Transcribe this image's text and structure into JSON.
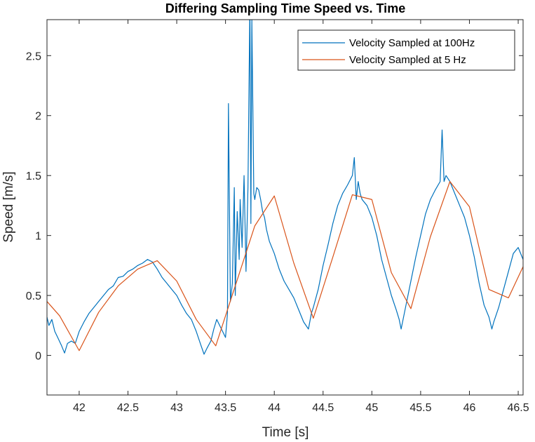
{
  "chart_data": {
    "type": "line",
    "title": "Differing Sampling Time Speed vs. Time",
    "xlabel": "Time [s]",
    "ylabel": "Speed [m/s]",
    "xlim": [
      41.67,
      46.55
    ],
    "ylim": [
      -0.33,
      2.8
    ],
    "grid": false,
    "legend_position": "top-right",
    "x_ticks": [
      42,
      42.5,
      43,
      43.5,
      44,
      44.5,
      45,
      45.5,
      46,
      46.5
    ],
    "x_tick_labels": [
      "42",
      "42.5",
      "43",
      "43.5",
      "44",
      "44.5",
      "45",
      "45.5",
      "46",
      "46.5"
    ],
    "y_ticks": [
      0,
      0.5,
      1,
      1.5,
      2,
      2.5
    ],
    "y_tick_labels": [
      "0",
      "0.5",
      "1",
      "1.5",
      "2",
      "2.5"
    ],
    "series": [
      {
        "name": "Velocity Sampled at 100Hz",
        "color": "#0072BD",
        "x": [
          41.67,
          41.69,
          41.72,
          41.75,
          41.78,
          41.82,
          41.85,
          41.88,
          41.92,
          41.96,
          42.0,
          42.05,
          42.1,
          42.15,
          42.2,
          42.25,
          42.3,
          42.35,
          42.4,
          42.45,
          42.5,
          42.55,
          42.6,
          42.65,
          42.7,
          42.75,
          42.8,
          42.85,
          42.9,
          42.95,
          43.0,
          43.05,
          43.1,
          43.15,
          43.2,
          43.25,
          43.28,
          43.31,
          43.35,
          43.38,
          43.41,
          43.44,
          43.47,
          43.5,
          43.52,
          43.53,
          43.55,
          43.57,
          43.59,
          43.6,
          43.62,
          43.64,
          43.65,
          43.67,
          43.69,
          43.71,
          43.73,
          43.75,
          43.76,
          43.77,
          43.79,
          43.8,
          43.82,
          43.84,
          43.86,
          43.88,
          43.9,
          43.92,
          43.95,
          44.0,
          44.05,
          44.1,
          44.15,
          44.2,
          44.25,
          44.3,
          44.35,
          44.38,
          44.4,
          44.45,
          44.5,
          44.55,
          44.6,
          44.65,
          44.7,
          44.75,
          44.8,
          44.82,
          44.84,
          44.86,
          44.88,
          44.9,
          44.95,
          45.0,
          45.05,
          45.1,
          45.15,
          45.2,
          45.25,
          45.28,
          45.3,
          45.35,
          45.4,
          45.45,
          45.5,
          45.55,
          45.6,
          45.65,
          45.7,
          45.72,
          45.74,
          45.76,
          45.8,
          45.85,
          45.9,
          45.95,
          46.0,
          46.05,
          46.1,
          46.15,
          46.2,
          46.23,
          46.25,
          46.3,
          46.35,
          46.4,
          46.45,
          46.5,
          46.55
        ],
        "values": [
          0.32,
          0.25,
          0.3,
          0.2,
          0.15,
          0.08,
          0.02,
          0.1,
          0.12,
          0.1,
          0.2,
          0.28,
          0.35,
          0.4,
          0.45,
          0.5,
          0.55,
          0.58,
          0.65,
          0.66,
          0.7,
          0.72,
          0.75,
          0.77,
          0.8,
          0.78,
          0.72,
          0.65,
          0.6,
          0.55,
          0.5,
          0.42,
          0.35,
          0.3,
          0.2,
          0.08,
          0.01,
          0.06,
          0.12,
          0.22,
          0.3,
          0.25,
          0.2,
          0.15,
          0.35,
          2.1,
          0.45,
          0.6,
          1.4,
          0.5,
          1.2,
          0.8,
          1.3,
          0.9,
          1.5,
          0.7,
          1.4,
          2.95,
          1.1,
          2.8,
          1.35,
          1.3,
          1.4,
          1.38,
          1.3,
          1.2,
          1.15,
          1.05,
          0.95,
          0.85,
          0.72,
          0.62,
          0.55,
          0.48,
          0.38,
          0.28,
          0.22,
          0.35,
          0.4,
          0.55,
          0.75,
          0.92,
          1.1,
          1.25,
          1.35,
          1.42,
          1.5,
          1.65,
          1.3,
          1.45,
          1.35,
          1.3,
          1.25,
          1.15,
          1.0,
          0.8,
          0.65,
          0.5,
          0.38,
          0.3,
          0.22,
          0.42,
          0.62,
          0.82,
          1.0,
          1.18,
          1.3,
          1.38,
          1.45,
          1.88,
          1.45,
          1.5,
          1.45,
          1.35,
          1.25,
          1.15,
          1.0,
          0.82,
          0.6,
          0.42,
          0.32,
          0.22,
          0.28,
          0.4,
          0.55,
          0.7,
          0.85,
          0.9,
          0.8
        ]
      },
      {
        "name": "Velocity Sampled at 5 Hz",
        "color": "#D95319",
        "x": [
          41.67,
          41.8,
          42.0,
          42.2,
          42.4,
          42.6,
          42.8,
          43.0,
          43.2,
          43.4,
          43.6,
          43.8,
          44.0,
          44.2,
          44.4,
          44.6,
          44.8,
          45.0,
          45.2,
          45.4,
          45.6,
          45.8,
          46.0,
          46.2,
          46.4,
          46.55
        ],
        "values": [
          0.45,
          0.33,
          0.04,
          0.36,
          0.58,
          0.72,
          0.79,
          0.62,
          0.3,
          0.08,
          0.58,
          1.08,
          1.33,
          0.77,
          0.31,
          0.82,
          1.34,
          1.3,
          0.69,
          0.39,
          0.99,
          1.45,
          1.24,
          0.55,
          0.48,
          0.74
        ]
      }
    ]
  }
}
